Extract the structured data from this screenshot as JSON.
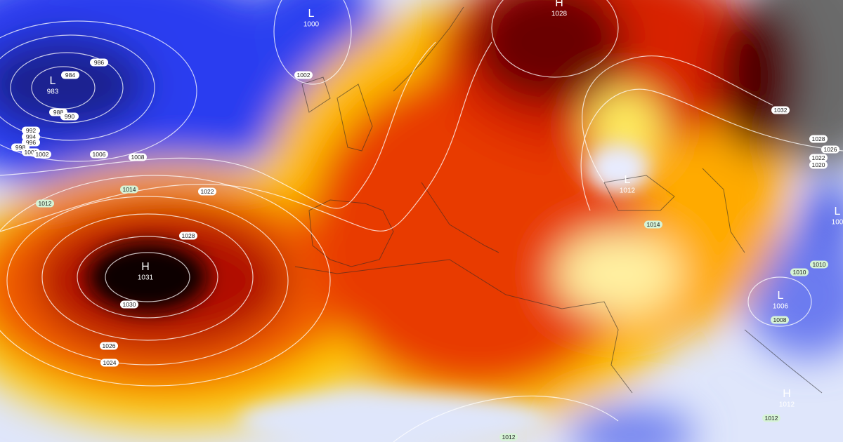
{
  "pressure_centers": [
    {
      "symbol": "L",
      "value": 983
    },
    {
      "symbol": "L",
      "value": 1000
    },
    {
      "symbol": "H",
      "value": 1028
    },
    {
      "symbol": "H",
      "value": 1031
    },
    {
      "symbol": "L",
      "value": 1006
    },
    {
      "symbol": "H",
      "value": 1012
    },
    {
      "symbol": "L",
      "value": 100
    },
    {
      "symbol": "L",
      "value": 1012
    }
  ],
  "isobar_labels": [
    986,
    984,
    988,
    990,
    992,
    994,
    996,
    998,
    1000,
    1002,
    1006,
    1008,
    1002,
    1014,
    1012,
    1022,
    1028,
    1030,
    1026,
    1024,
    1032,
    1028,
    1026,
    1022,
    1020,
    1014,
    1010,
    1010,
    1008,
    1012,
    1012
  ]
}
